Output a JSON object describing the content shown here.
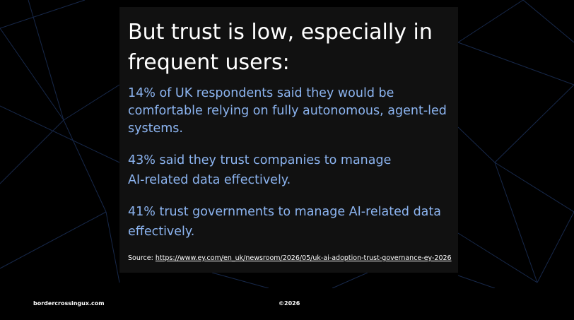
{
  "slide": {
    "title_lines": [
      "But trust is low, especially in",
      "frequent users:"
    ],
    "paragraphs": [
      [
        "14% of UK respondents said they would be",
        "comfortable relying on fully autonomous, agent-led",
        "systems."
      ],
      [
        "43% said they trust companies to manage",
        "AI-related data effectively."
      ],
      [
        "41% trust governments to manage AI-related data",
        "effectively."
      ]
    ],
    "source": {
      "label": "Source:",
      "url": "https://www.ey.com/en_uk/newsroom/2026/05/uk-ai-adoption-trust-governance-ey-2026"
    }
  },
  "footer": {
    "site": "bordercrossingux.com",
    "copyright": "©2026"
  }
}
